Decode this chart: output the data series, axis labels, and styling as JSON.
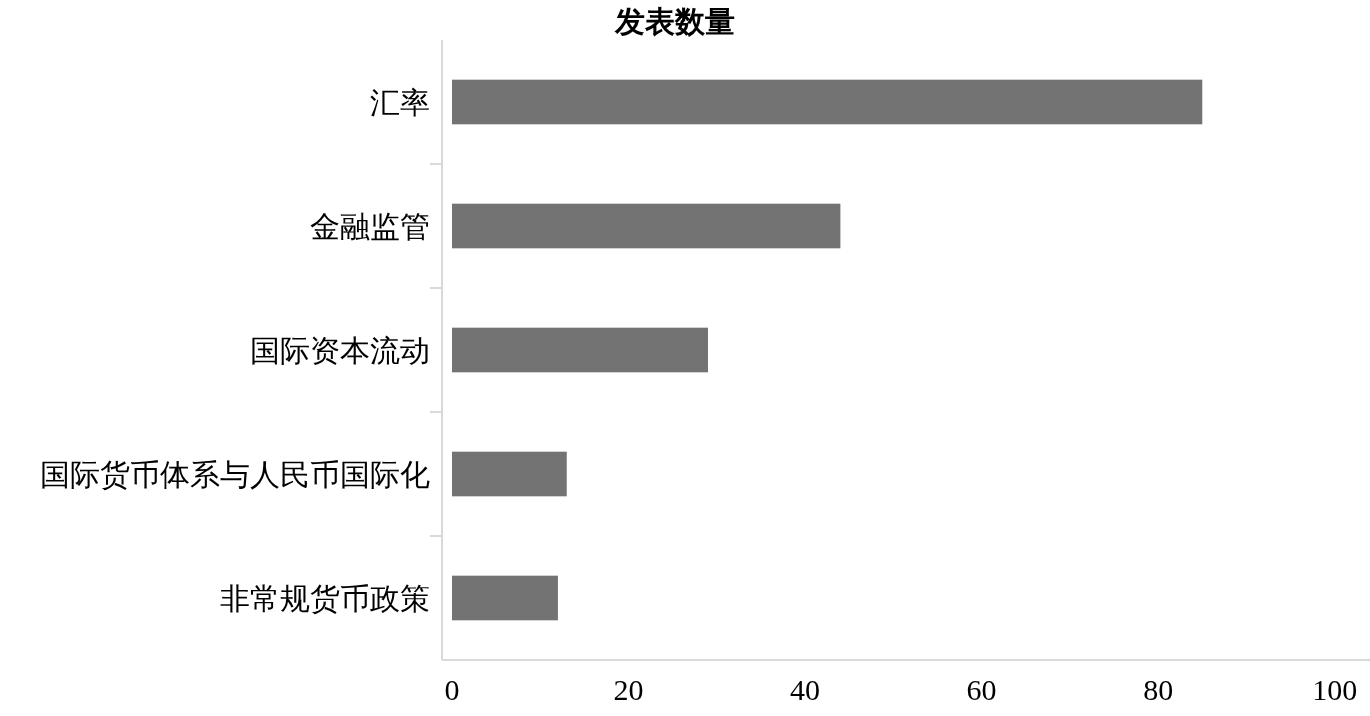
{
  "chart_data": {
    "type": "bar",
    "orientation": "horizontal",
    "title": "发表数量",
    "categories": [
      "汇率",
      "金融监管",
      "国际资本流动",
      "国际货币体系与人民币国际化",
      "非常规货币政策"
    ],
    "values": [
      85,
      44,
      29,
      13,
      12
    ],
    "color": "#737373",
    "xlim": [
      0,
      104
    ],
    "xticks": [
      0,
      20,
      40,
      60,
      80,
      100
    ]
  }
}
